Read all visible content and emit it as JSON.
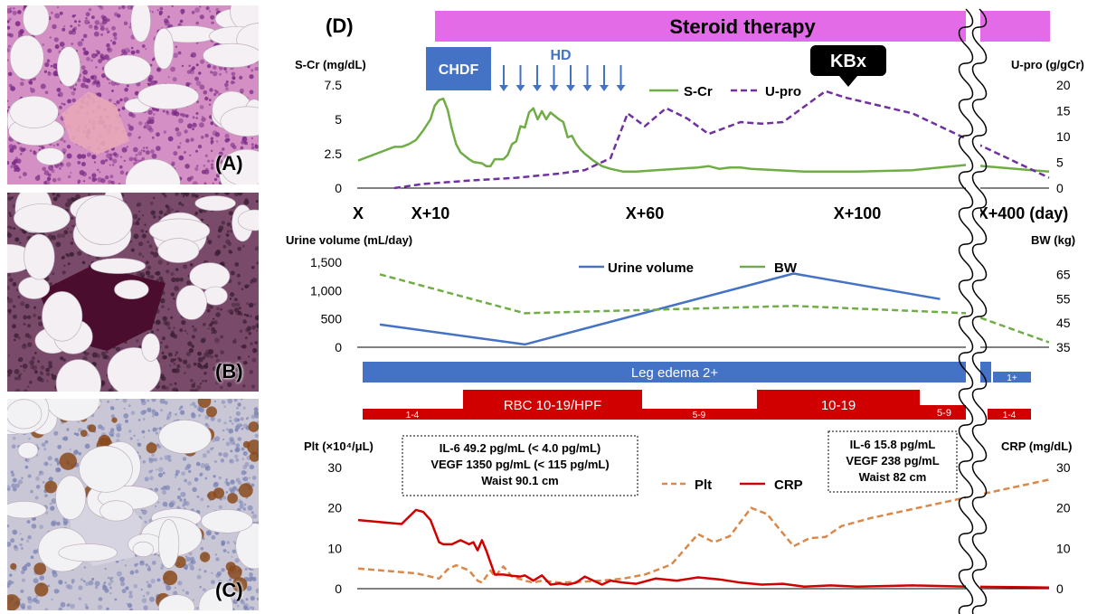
{
  "panels": {
    "A": {
      "label": "(A)",
      "stain": "H&E",
      "colors": {
        "bg": "#d48fc4",
        "fat": "#f4f0f4",
        "cell": "#7a2b86",
        "trabecula": "#e8a7b8"
      }
    },
    "B": {
      "label": "(B)",
      "stain": "silver/reticulin",
      "colors": {
        "bg": "#7a4a6a",
        "fat": "#f3eff2",
        "cell": "#3a1f33",
        "trabecula": "#4a0d2e"
      }
    },
    "C": {
      "label": "(C)",
      "stain": "IHC",
      "colors": {
        "bg": "#c9c6d6",
        "fat": "#f2f1f4",
        "cell": "#7d86b5",
        "stain": "#8a4a1c"
      }
    }
  },
  "figure": {
    "panel_label": "(D)",
    "steroid_label": "Steroid therapy",
    "chdf_label": "CHDF",
    "hd_label": "HD",
    "kbx_label": "KBx",
    "colors": {
      "steroid": "#e36be8",
      "chdf": "#4472c4",
      "hd": "#4472c4",
      "kbx": "#000000",
      "green": "#70ad47",
      "purple": "#7030a0",
      "blue": "#4472c4",
      "orange": "#d9884a",
      "red": "#d00000",
      "edema": "#4472c4"
    }
  },
  "time_axis": {
    "labels": [
      "X",
      "X+10",
      "X+60",
      "X+100",
      "X+400 (day)"
    ]
  },
  "legend_edema": {
    "main": "Leg edema 2+",
    "after": "1+"
  },
  "rbc_bar": {
    "seg1": "1-4",
    "seg2": "RBC 10-19/HPF",
    "seg3": "5-9",
    "seg4": "10-19",
    "seg5": "5-9",
    "seg6": "1-4"
  },
  "info_boxes": {
    "left": {
      "line1": "IL-6  49.2 pg/mL (< 4.0 pg/mL)",
      "line2": "VEGF 1350 pg/mL (< 115 pg/mL)",
      "line3": "Waist 90.1 cm"
    },
    "right": {
      "line1": "IL-6  15.8 pg/mL",
      "line2": "VEGF 238 pg/mL",
      "line3": "Waist 82 cm"
    }
  },
  "chart_data": [
    {
      "type": "line",
      "ylabel_left": "S-Cr (mg/dL)",
      "ylabel_right": "U-pro (g/gCr)",
      "yticks_left": [
        "7.5",
        "5",
        "2.5",
        "0"
      ],
      "yticks_right": [
        "20",
        "15",
        "10",
        "5",
        "0"
      ],
      "ylim_left": [
        0,
        7.5
      ],
      "ylim_right": [
        0,
        20
      ],
      "series": [
        {
          "name": "S-Cr",
          "axis": "left",
          "style": "solid",
          "color": "#70ad47",
          "points": [
            [
              0,
              2.0
            ],
            [
              3,
              2.6
            ],
            [
              5,
              3.0
            ],
            [
              6,
              3.0
            ],
            [
              7,
              3.2
            ],
            [
              8,
              3.5
            ],
            [
              9,
              4.2
            ],
            [
              10,
              5.0
            ],
            [
              11,
              6.0
            ],
            [
              12,
              6.4
            ],
            [
              13,
              6.5
            ],
            [
              14,
              5.7
            ],
            [
              15,
              4.3
            ],
            [
              16,
              3.2
            ],
            [
              17,
              2.6
            ],
            [
              19,
              2.1
            ],
            [
              20,
              1.9
            ],
            [
              22,
              1.8
            ],
            [
              23,
              1.6
            ],
            [
              24,
              1.6
            ],
            [
              25,
              2.1
            ],
            [
              27,
              2.1
            ],
            [
              28,
              2.4
            ],
            [
              29,
              3.2
            ],
            [
              30,
              3.4
            ],
            [
              31,
              4.5
            ],
            [
              32,
              4.4
            ],
            [
              33,
              5.5
            ],
            [
              34,
              5.8
            ],
            [
              35,
              5.0
            ],
            [
              36,
              5.6
            ],
            [
              37,
              5.0
            ],
            [
              38,
              5.5
            ],
            [
              40,
              5.0
            ],
            [
              41,
              4.8
            ],
            [
              42,
              3.7
            ],
            [
              43,
              3.8
            ],
            [
              44,
              3.2
            ],
            [
              45,
              2.8
            ],
            [
              46,
              2.5
            ],
            [
              48,
              2.0
            ],
            [
              50,
              1.6
            ],
            [
              52,
              1.4
            ],
            [
              55,
              1.2
            ],
            [
              58,
              1.2
            ],
            [
              62,
              1.3
            ],
            [
              66,
              1.4
            ],
            [
              70,
              1.5
            ],
            [
              72,
              1.6
            ],
            [
              74,
              1.4
            ],
            [
              76,
              1.5
            ],
            [
              78,
              1.5
            ],
            [
              80,
              1.4
            ],
            [
              85,
              1.3
            ],
            [
              90,
              1.2
            ],
            [
              95,
              1.2
            ],
            [
              100,
              1.2
            ],
            [
              104,
              1.3
            ],
            [
              108,
              1.7
            ],
            [
              400,
              1.2
            ]
          ]
        },
        {
          "name": "U-pro",
          "axis": "right",
          "style": "dashed",
          "color": "#7030a0",
          "points": [
            [
              5,
              0.0
            ],
            [
              9,
              0.8
            ],
            [
              20,
              1.5
            ],
            [
              30,
              2.0
            ],
            [
              40,
              2.8
            ],
            [
              46,
              3.5
            ],
            [
              52,
              5.8
            ],
            [
              56,
              14.5
            ],
            [
              60,
              12.0
            ],
            [
              64,
              15.5
            ],
            [
              68,
              13.5
            ],
            [
              72,
              10.5
            ],
            [
              78,
              12.8
            ],
            [
              82,
              12.5
            ],
            [
              86,
              12.8
            ],
            [
              90,
              15.8
            ],
            [
              94,
              18.8
            ],
            [
              98,
              17.5
            ],
            [
              104,
              14.5
            ],
            [
              400,
              2.0
            ]
          ]
        }
      ]
    },
    {
      "type": "line",
      "ylabel_left": "Urine volume (mL/day)",
      "ylabel_right": "BW (kg)",
      "yticks_left": [
        "1,500",
        "1,000",
        "500",
        "0"
      ],
      "yticks_right": [
        "65",
        "55",
        "45",
        "35"
      ],
      "ylim_left": [
        0,
        1500
      ],
      "ylim_right": [
        35,
        70
      ],
      "series": [
        {
          "name": "Urine volume",
          "axis": "left",
          "style": "solid",
          "color": "#4472c4",
          "points": [
            [
              3,
              400
            ],
            [
              32,
              50
            ],
            [
              88,
              1300
            ],
            [
              106,
              850
            ]
          ]
        },
        {
          "name": "BW",
          "axis": "right",
          "style": "dashed",
          "color": "#70ad47",
          "points": [
            [
              3,
              65
            ],
            [
              32,
              49
            ],
            [
              88,
              52
            ],
            [
              108,
              49
            ],
            [
              400,
              37
            ]
          ]
        }
      ]
    },
    {
      "type": "line",
      "ylabel_left": "Plt (×10⁴/μL)",
      "ylabel_right": "CRP (mg/dL)",
      "yticks_left": [
        "30",
        "20",
        "10",
        "0"
      ],
      "yticks_right": [
        "30",
        "20",
        "10",
        "0"
      ],
      "ylim_left": [
        0,
        30
      ],
      "ylim_right": [
        0,
        30
      ],
      "series": [
        {
          "name": "Plt",
          "axis": "left",
          "style": "dashed",
          "color": "#d9884a",
          "points": [
            [
              0,
              5.0
            ],
            [
              8,
              3.8
            ],
            [
              12,
              2.5
            ],
            [
              14,
              4.8
            ],
            [
              16,
              5.8
            ],
            [
              19,
              4.5
            ],
            [
              21,
              2.0
            ],
            [
              22,
              1.5
            ],
            [
              24,
              4.5
            ],
            [
              25,
              3.0
            ],
            [
              27,
              5.5
            ],
            [
              29,
              3.0
            ],
            [
              32,
              2.0
            ],
            [
              34,
              1.5
            ],
            [
              36,
              2.0
            ],
            [
              40,
              1.5
            ],
            [
              45,
              1.7
            ],
            [
              50,
              2.0
            ],
            [
              55,
              2.5
            ],
            [
              60,
              3.5
            ],
            [
              65,
              6.0
            ],
            [
              70,
              13.5
            ],
            [
              73,
              11.5
            ],
            [
              76,
              13.0
            ],
            [
              80,
              20.0
            ],
            [
              83,
              18.5
            ],
            [
              88,
              10.5
            ],
            [
              91,
              12.5
            ],
            [
              94,
              12.8
            ],
            [
              97,
              15.5
            ],
            [
              101,
              17.5
            ],
            [
              400,
              27.0
            ]
          ]
        },
        {
          "name": "CRP",
          "axis": "right",
          "style": "solid",
          "color": "#d00000",
          "points": [
            [
              0,
              17.0
            ],
            [
              6,
              16.0
            ],
            [
              8,
              19.5
            ],
            [
              9,
              19.0
            ],
            [
              10,
              17.0
            ],
            [
              12,
              11.5
            ],
            [
              13,
              11.0
            ],
            [
              15,
              11.0
            ],
            [
              17,
              12.0
            ],
            [
              19,
              11.0
            ],
            [
              20,
              11.5
            ],
            [
              21,
              9.5
            ],
            [
              22,
              12.0
            ],
            [
              23,
              9.5
            ],
            [
              25,
              3.5
            ],
            [
              27,
              3.5
            ],
            [
              29,
              3.2
            ],
            [
              31,
              3.0
            ],
            [
              32,
              3.3
            ],
            [
              34,
              2.0
            ],
            [
              36,
              3.3
            ],
            [
              38,
              1.0
            ],
            [
              40,
              1.3
            ],
            [
              42,
              1.0
            ],
            [
              44,
              1.5
            ],
            [
              46,
              3.0
            ],
            [
              48,
              2.0
            ],
            [
              50,
              1.0
            ],
            [
              52,
              2.0
            ],
            [
              55,
              1.5
            ],
            [
              58,
              1.2
            ],
            [
              62,
              2.5
            ],
            [
              66,
              2.0
            ],
            [
              70,
              2.8
            ],
            [
              74,
              2.3
            ],
            [
              78,
              1.5
            ],
            [
              82,
              1.0
            ],
            [
              86,
              1.2
            ],
            [
              90,
              0.5
            ],
            [
              95,
              0.8
            ],
            [
              100,
              0.5
            ],
            [
              104,
              0.8
            ],
            [
              108,
              0.5
            ],
            [
              400,
              0.3
            ]
          ]
        }
      ]
    }
  ]
}
